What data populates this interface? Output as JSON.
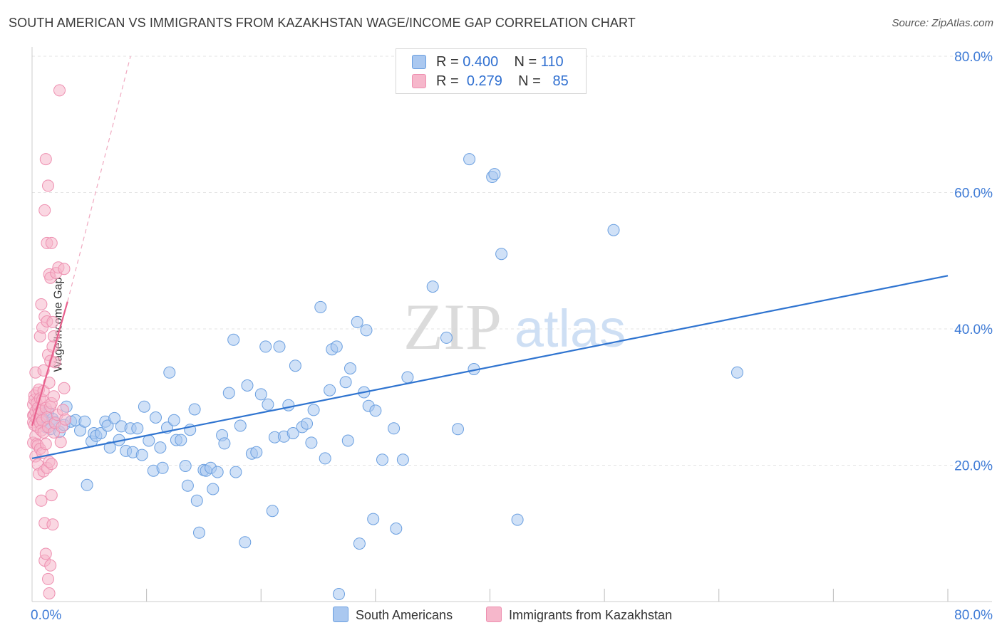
{
  "header": {
    "title": "SOUTH AMERICAN VS IMMIGRANTS FROM KAZAKHSTAN WAGE/INCOME GAP CORRELATION CHART",
    "source": "Source: ZipAtlas.com"
  },
  "watermark": {
    "zip": "ZIP",
    "atlas": "atlas"
  },
  "legend": {
    "rows": [
      {
        "r_label": "R = ",
        "r_value": "0.400",
        "n_label": "N = ",
        "n_value": "110",
        "color": "#aac8f0"
      },
      {
        "r_label": "R = ",
        "r_value": "0.279",
        "n_label": "N = ",
        "n_value": "85",
        "color": "#f6b7cb"
      }
    ]
  },
  "bottom_legend": [
    {
      "label": "South Americans",
      "color": "#aac8f0"
    },
    {
      "label": "Immigrants from Kazakhstan",
      "color": "#f6b7cb"
    }
  ],
  "chart_data": {
    "type": "scatter",
    "title": "SOUTH AMERICAN VS IMMIGRANTS FROM KAZAKHSTAN WAGE/INCOME GAP CORRELATION CHART",
    "xlabel": "",
    "ylabel": "Wage/Income Gap",
    "xlim": [
      0,
      80
    ],
    "ylim": [
      0,
      80
    ],
    "x_tick_labels": [
      "0.0%",
      "80.0%"
    ],
    "y_tick_labels": [
      "20.0%",
      "40.0%",
      "60.0%",
      "80.0%"
    ],
    "y_ticks": [
      20,
      40,
      60,
      80
    ],
    "series": [
      {
        "name": "South Americans",
        "color": "#aac8f0",
        "stroke": "#6a9fe0",
        "points": [
          [
            0.6,
            28.2
          ],
          [
            0.8,
            27.1
          ],
          [
            1.0,
            26.7
          ],
          [
            1.2,
            25.6
          ],
          [
            1.4,
            27.8
          ],
          [
            1.6,
            25.3
          ],
          [
            1.8,
            26.8
          ],
          [
            2.0,
            26.3
          ],
          [
            2.4,
            24.9
          ],
          [
            2.8,
            25.9
          ],
          [
            3.0,
            28.6
          ],
          [
            3.4,
            26.4
          ],
          [
            3.8,
            26.6
          ],
          [
            4.2,
            25.1
          ],
          [
            4.6,
            26.4
          ],
          [
            4.8,
            17.1
          ],
          [
            5.2,
            23.5
          ],
          [
            5.4,
            24.7
          ],
          [
            5.6,
            24.3
          ],
          [
            6.0,
            24.7
          ],
          [
            6.4,
            26.4
          ],
          [
            6.6,
            25.8
          ],
          [
            6.8,
            22.6
          ],
          [
            7.2,
            26.9
          ],
          [
            7.6,
            23.7
          ],
          [
            7.8,
            25.7
          ],
          [
            8.2,
            22.1
          ],
          [
            8.6,
            25.4
          ],
          [
            8.8,
            21.9
          ],
          [
            9.2,
            25.4
          ],
          [
            9.6,
            21.5
          ],
          [
            9.8,
            28.6
          ],
          [
            10.2,
            23.6
          ],
          [
            10.6,
            19.2
          ],
          [
            10.8,
            27.0
          ],
          [
            11.2,
            22.6
          ],
          [
            11.4,
            19.6
          ],
          [
            11.8,
            25.5
          ],
          [
            12.0,
            33.6
          ],
          [
            12.4,
            26.6
          ],
          [
            12.6,
            23.7
          ],
          [
            13.0,
            23.7
          ],
          [
            13.4,
            19.9
          ],
          [
            13.6,
            17.0
          ],
          [
            13.8,
            25.2
          ],
          [
            14.2,
            28.2
          ],
          [
            14.4,
            14.8
          ],
          [
            14.6,
            10.1
          ],
          [
            15.0,
            19.3
          ],
          [
            15.2,
            19.2
          ],
          [
            15.6,
            19.6
          ],
          [
            15.8,
            16.5
          ],
          [
            16.2,
            19.0
          ],
          [
            16.6,
            24.4
          ],
          [
            16.8,
            23.2
          ],
          [
            17.2,
            30.6
          ],
          [
            17.6,
            38.4
          ],
          [
            17.8,
            19.0
          ],
          [
            18.2,
            25.8
          ],
          [
            18.6,
            8.7
          ],
          [
            18.8,
            31.7
          ],
          [
            19.2,
            21.7
          ],
          [
            19.6,
            21.9
          ],
          [
            20.0,
            30.4
          ],
          [
            20.4,
            37.4
          ],
          [
            20.6,
            28.9
          ],
          [
            21.0,
            13.3
          ],
          [
            21.2,
            24.1
          ],
          [
            21.6,
            37.4
          ],
          [
            22.0,
            24.2
          ],
          [
            22.4,
            28.8
          ],
          [
            22.8,
            24.7
          ],
          [
            23.0,
            34.6
          ],
          [
            23.6,
            25.6
          ],
          [
            24.0,
            26.1
          ],
          [
            24.4,
            23.3
          ],
          [
            24.6,
            28.1
          ],
          [
            25.2,
            43.2
          ],
          [
            25.6,
            21.0
          ],
          [
            26.0,
            31.0
          ],
          [
            26.2,
            37.0
          ],
          [
            26.6,
            37.4
          ],
          [
            26.8,
            1.1
          ],
          [
            27.4,
            32.2
          ],
          [
            27.6,
            23.6
          ],
          [
            27.8,
            34.2
          ],
          [
            28.4,
            41.0
          ],
          [
            28.6,
            8.5
          ],
          [
            29.0,
            30.7
          ],
          [
            29.2,
            39.8
          ],
          [
            29.4,
            28.7
          ],
          [
            29.8,
            12.1
          ],
          [
            30.0,
            28.0
          ],
          [
            30.6,
            20.8
          ],
          [
            31.6,
            25.4
          ],
          [
            31.8,
            10.7
          ],
          [
            32.4,
            20.8
          ],
          [
            32.8,
            32.9
          ],
          [
            35.0,
            46.2
          ],
          [
            36.2,
            38.7
          ],
          [
            37.2,
            25.3
          ],
          [
            38.2,
            64.9
          ],
          [
            38.6,
            34.1
          ],
          [
            40.2,
            62.3
          ],
          [
            40.4,
            62.7
          ],
          [
            41.0,
            51.0
          ],
          [
            42.4,
            12.0
          ],
          [
            50.8,
            54.5
          ],
          [
            61.6,
            33.6
          ]
        ]
      },
      {
        "name": "Immigrants from Kazakhstan",
        "color": "#f6b7cb",
        "stroke": "#ee8fb0",
        "points": [
          [
            0.1,
            27.3
          ],
          [
            0.1,
            28.9
          ],
          [
            0.1,
            23.3
          ],
          [
            0.1,
            26.3
          ],
          [
            0.2,
            30.2
          ],
          [
            0.2,
            27.4
          ],
          [
            0.2,
            25.9
          ],
          [
            0.2,
            29.6
          ],
          [
            0.3,
            33.6
          ],
          [
            0.3,
            27.9
          ],
          [
            0.3,
            24.3
          ],
          [
            0.3,
            21.3
          ],
          [
            0.4,
            29.1
          ],
          [
            0.4,
            26.8
          ],
          [
            0.4,
            23.1
          ],
          [
            0.4,
            30.6
          ],
          [
            0.5,
            28.4
          ],
          [
            0.5,
            25.6
          ],
          [
            0.5,
            22.9
          ],
          [
            0.5,
            20.1
          ],
          [
            0.6,
            31.1
          ],
          [
            0.6,
            27.6
          ],
          [
            0.6,
            18.7
          ],
          [
            0.7,
            29.8
          ],
          [
            0.7,
            26.2
          ],
          [
            0.7,
            22.4
          ],
          [
            0.7,
            38.9
          ],
          [
            0.8,
            28.1
          ],
          [
            0.8,
            25.1
          ],
          [
            0.8,
            14.8
          ],
          [
            0.8,
            43.6
          ],
          [
            0.9,
            29.6
          ],
          [
            0.9,
            26.6
          ],
          [
            0.9,
            21.8
          ],
          [
            0.9,
            40.2
          ],
          [
            1.0,
            33.9
          ],
          [
            1.0,
            30.9
          ],
          [
            1.0,
            24.8
          ],
          [
            1.0,
            19.1
          ],
          [
            1.1,
            57.4
          ],
          [
            1.1,
            41.8
          ],
          [
            1.1,
            11.5
          ],
          [
            1.1,
            6.0
          ],
          [
            1.2,
            64.9
          ],
          [
            1.2,
            28.4
          ],
          [
            1.2,
            23.1
          ],
          [
            1.2,
            7.0
          ],
          [
            1.3,
            52.6
          ],
          [
            1.3,
            41.1
          ],
          [
            1.3,
            27.0
          ],
          [
            1.3,
            19.6
          ],
          [
            1.4,
            61.0
          ],
          [
            1.4,
            36.2
          ],
          [
            1.4,
            25.6
          ],
          [
            1.4,
            3.3
          ],
          [
            1.5,
            48.0
          ],
          [
            1.5,
            32.1
          ],
          [
            1.5,
            20.5
          ],
          [
            1.5,
            1.2
          ],
          [
            1.6,
            47.5
          ],
          [
            1.6,
            35.3
          ],
          [
            1.6,
            28.6
          ],
          [
            1.6,
            5.3
          ],
          [
            1.7,
            52.6
          ],
          [
            1.7,
            29.1
          ],
          [
            1.7,
            15.6
          ],
          [
            1.7,
            20.2
          ],
          [
            1.8,
            41.0
          ],
          [
            1.8,
            37.4
          ],
          [
            1.8,
            11.3
          ],
          [
            1.9,
            38.9
          ],
          [
            1.9,
            24.8
          ],
          [
            1.9,
            30.1
          ],
          [
            2.0,
            35.1
          ],
          [
            2.0,
            26.2
          ],
          [
            2.1,
            48.2
          ],
          [
            2.2,
            27.4
          ],
          [
            2.3,
            49.0
          ],
          [
            2.4,
            75.0
          ],
          [
            2.5,
            23.4
          ],
          [
            2.6,
            25.6
          ],
          [
            2.7,
            28.1
          ],
          [
            2.8,
            48.8
          ],
          [
            2.8,
            31.3
          ],
          [
            2.9,
            26.7
          ]
        ]
      }
    ],
    "trend_lines": [
      {
        "series": "South Americans",
        "x": [
          0,
          80
        ],
        "y": [
          21.0,
          47.8
        ],
        "color": "#2f74d0",
        "style": "solid"
      },
      {
        "series": "Immigrants from Kazakhstan",
        "x": [
          0,
          3.1
        ],
        "y": [
          25.8,
          44.0
        ],
        "color": "#e8608d",
        "style": "solid"
      },
      {
        "series": "Immigrants from Kazakhstan",
        "x": [
          3.1,
          8.6
        ],
        "y": [
          44.0,
          80.0
        ],
        "color": "#f0a9c0",
        "style": "dashed"
      }
    ]
  }
}
